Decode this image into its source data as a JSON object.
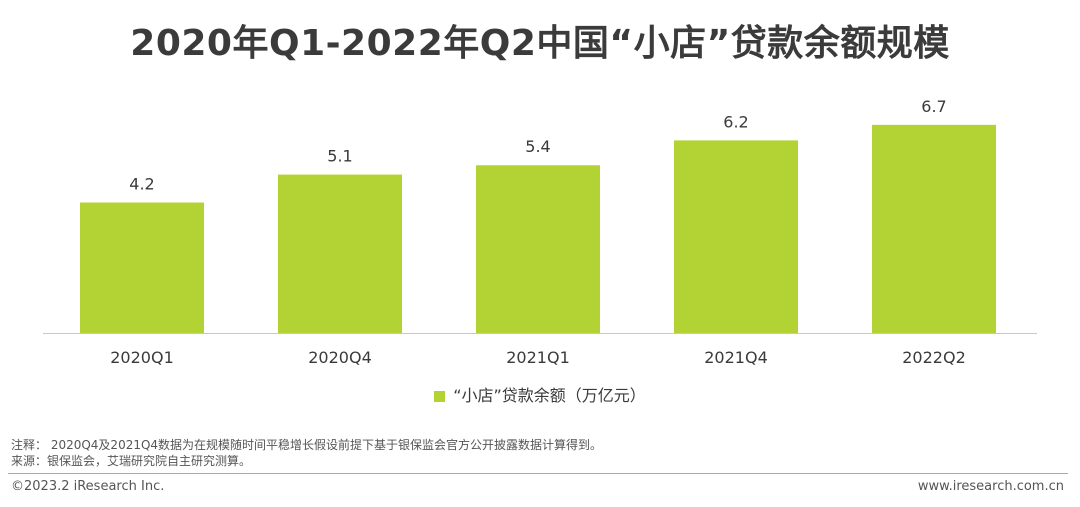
{
  "title": "2020年Q1-2022年Q2中国“小店”贷款余额规模",
  "chart_data": {
    "type": "bar",
    "categories": [
      "2020Q1",
      "2020Q4",
      "2021Q1",
      "2021Q4",
      "2022Q2"
    ],
    "series": [
      {
        "name": "“小店”贷款余额（万亿元）",
        "values": [
          4.2,
          5.1,
          5.4,
          6.2,
          6.7
        ],
        "color": "#b3d334"
      }
    ],
    "data_labels": [
      "4.2",
      "5.1",
      "5.4",
      "6.2",
      "6.7"
    ],
    "xlabel": "",
    "ylabel": "",
    "ylim": [
      0,
      7.5
    ],
    "grid": false,
    "legend_position": "bottom",
    "axis_line_color": "#c8c8c8"
  },
  "notes": {
    "note": "注释： 2020Q4及2021Q4数据为在规模随时间平稳增长假设前提下基于银保监会官方公开披露数据计算得到。",
    "source": "来源：银保监会，艾瑞研究院自主研究测算。"
  },
  "footer": {
    "copyright": "©2023.2 iResearch Inc.",
    "website": "www.iresearch.com.cn"
  }
}
